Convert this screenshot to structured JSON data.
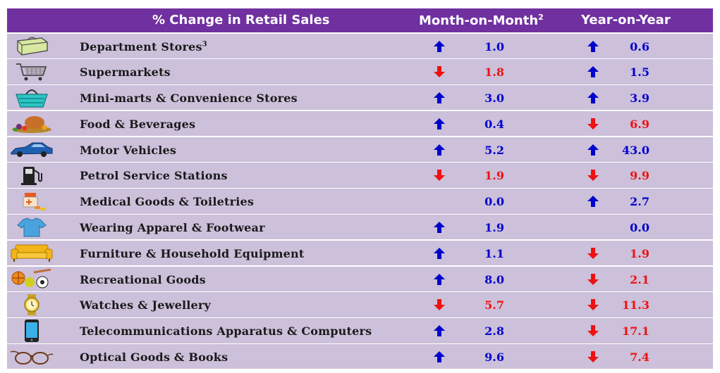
{
  "chart_data": {
    "type": "table",
    "headers": {
      "category": "% Change in Retail Sales",
      "mom": "Month-on-Month",
      "mom_sup": "2",
      "yoy": "Year-on-Year"
    },
    "rows": [
      {
        "icon": "shopping-bag-icon",
        "label": "Department Stores",
        "sup": "3",
        "mom": "1.0",
        "mom_dir": "up",
        "yoy": "0.6",
        "yoy_dir": "up"
      },
      {
        "icon": "shopping-cart-icon",
        "label": "Supermarkets",
        "sup": "",
        "mom": "1.8",
        "mom_dir": "down",
        "yoy": "1.5",
        "yoy_dir": "up"
      },
      {
        "icon": "basket-icon",
        "label": "Mini-marts & Convenience Stores",
        "sup": "",
        "mom": "3.0",
        "mom_dir": "up",
        "yoy": "3.9",
        "yoy_dir": "up"
      },
      {
        "icon": "food-icon",
        "label": "Food & Beverages",
        "sup": "",
        "mom": "0.4",
        "mom_dir": "up",
        "yoy": "6.9",
        "yoy_dir": "down"
      },
      {
        "icon": "car-icon",
        "label": "Motor Vehicles",
        "sup": "",
        "mom": "5.2",
        "mom_dir": "up",
        "yoy": "43.0",
        "yoy_dir": "up"
      },
      {
        "icon": "fuel-pump-icon",
        "label": "Petrol Service Stations",
        "sup": "",
        "mom": "1.9",
        "mom_dir": "down",
        "yoy": "9.9",
        "yoy_dir": "down"
      },
      {
        "icon": "medicine-icon",
        "label": "Medical Goods & Toiletries",
        "sup": "",
        "mom": "0.0",
        "mom_dir": "none",
        "yoy": "2.7",
        "yoy_dir": "up"
      },
      {
        "icon": "tshirt-icon",
        "label": "Wearing Apparel & Footwear",
        "sup": "",
        "mom": "1.9",
        "mom_dir": "up",
        "yoy": "0.0",
        "yoy_dir": "none"
      },
      {
        "icon": "sofa-icon",
        "label": "Furniture & Household Equipment",
        "sup": "",
        "mom": "1.1",
        "mom_dir": "up",
        "yoy": "1.9",
        "yoy_dir": "down"
      },
      {
        "icon": "sports-balls-icon",
        "label": "Recreational Goods",
        "sup": "",
        "mom": "8.0",
        "mom_dir": "up",
        "yoy": "2.1",
        "yoy_dir": "down"
      },
      {
        "icon": "watch-icon",
        "label": "Watches & Jewellery",
        "sup": "",
        "mom": "5.7",
        "mom_dir": "down",
        "yoy": "11.3",
        "yoy_dir": "down"
      },
      {
        "icon": "phone-icon",
        "label": "Telecommunications Apparatus & Computers",
        "sup": "",
        "mom": "2.8",
        "mom_dir": "up",
        "yoy": "17.1",
        "yoy_dir": "down"
      },
      {
        "icon": "glasses-icon",
        "label": "Optical Goods & Books",
        "sup": "",
        "mom": "9.6",
        "mom_dir": "up",
        "yoy": "7.4",
        "yoy_dir": "down"
      }
    ],
    "colors": {
      "header_bg": "#7030a0",
      "row_bg": "#ccc0da",
      "up": "#0000cc",
      "down": "#ee1111"
    }
  }
}
